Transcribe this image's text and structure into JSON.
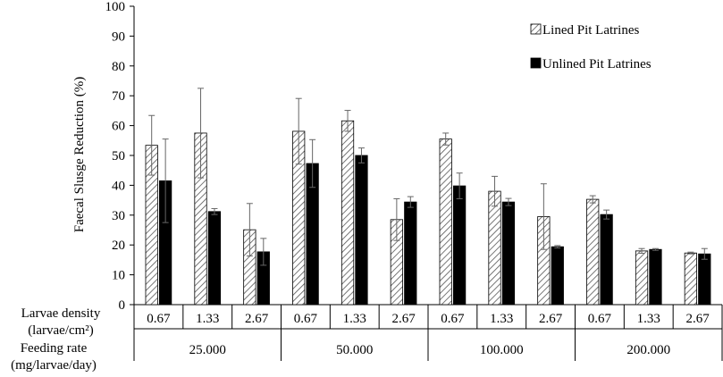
{
  "chart_data": {
    "type": "bar",
    "ylabel": "Faecal Slusge Reduction (%)",
    "ylim": [
      0,
      100
    ],
    "yticks": [
      0,
      10,
      20,
      30,
      40,
      50,
      60,
      70,
      80,
      90,
      100
    ],
    "row_labels": {
      "density": [
        "Larvae density",
        "(larvae/cm²)"
      ],
      "feeding": [
        "Feeding rate",
        "(mg/larvae/day)"
      ]
    },
    "groups": [
      {
        "feeding_rate": "25.000",
        "densities": [
          "0.67",
          "1.33",
          "2.67"
        ]
      },
      {
        "feeding_rate": "50.000",
        "densities": [
          "0.67",
          "1.33",
          "2.67"
        ]
      },
      {
        "feeding_rate": "100.000",
        "densities": [
          "0.67",
          "1.33",
          "2.67"
        ]
      },
      {
        "feeding_rate": "200.000",
        "densities": [
          "0.67",
          "1.33",
          "2.67"
        ]
      }
    ],
    "series": [
      {
        "name": "Lined Pit Latrines",
        "pattern": "hatched",
        "values": [
          53.4,
          57.5,
          25.1,
          58.1,
          61.6,
          28.5,
          55.5,
          38.0,
          29.5,
          35.3,
          18.0,
          17.3
        ],
        "errors": [
          10.0,
          15.0,
          8.8,
          11.0,
          3.5,
          7.0,
          2.0,
          5.0,
          11.0,
          1.2,
          0.8,
          0.3
        ]
      },
      {
        "name": "Unlined Pit Latrines",
        "pattern": "solid",
        "values": [
          41.5,
          31.2,
          17.7,
          47.3,
          50.0,
          34.4,
          39.8,
          34.4,
          19.4,
          30.2,
          18.5,
          17.0
        ],
        "errors": [
          14.0,
          1.0,
          4.5,
          8.0,
          2.5,
          1.8,
          4.3,
          1.2,
          0.4,
          1.5,
          0.3,
          1.8
        ]
      }
    ],
    "legend": "top-right",
    "grid": false,
    "colors": {
      "lined_fill": "#ffffff",
      "lined_hatch": "#555555",
      "unlined_fill": "#000000",
      "axis": "#000000",
      "error_bar": "#666666"
    }
  }
}
